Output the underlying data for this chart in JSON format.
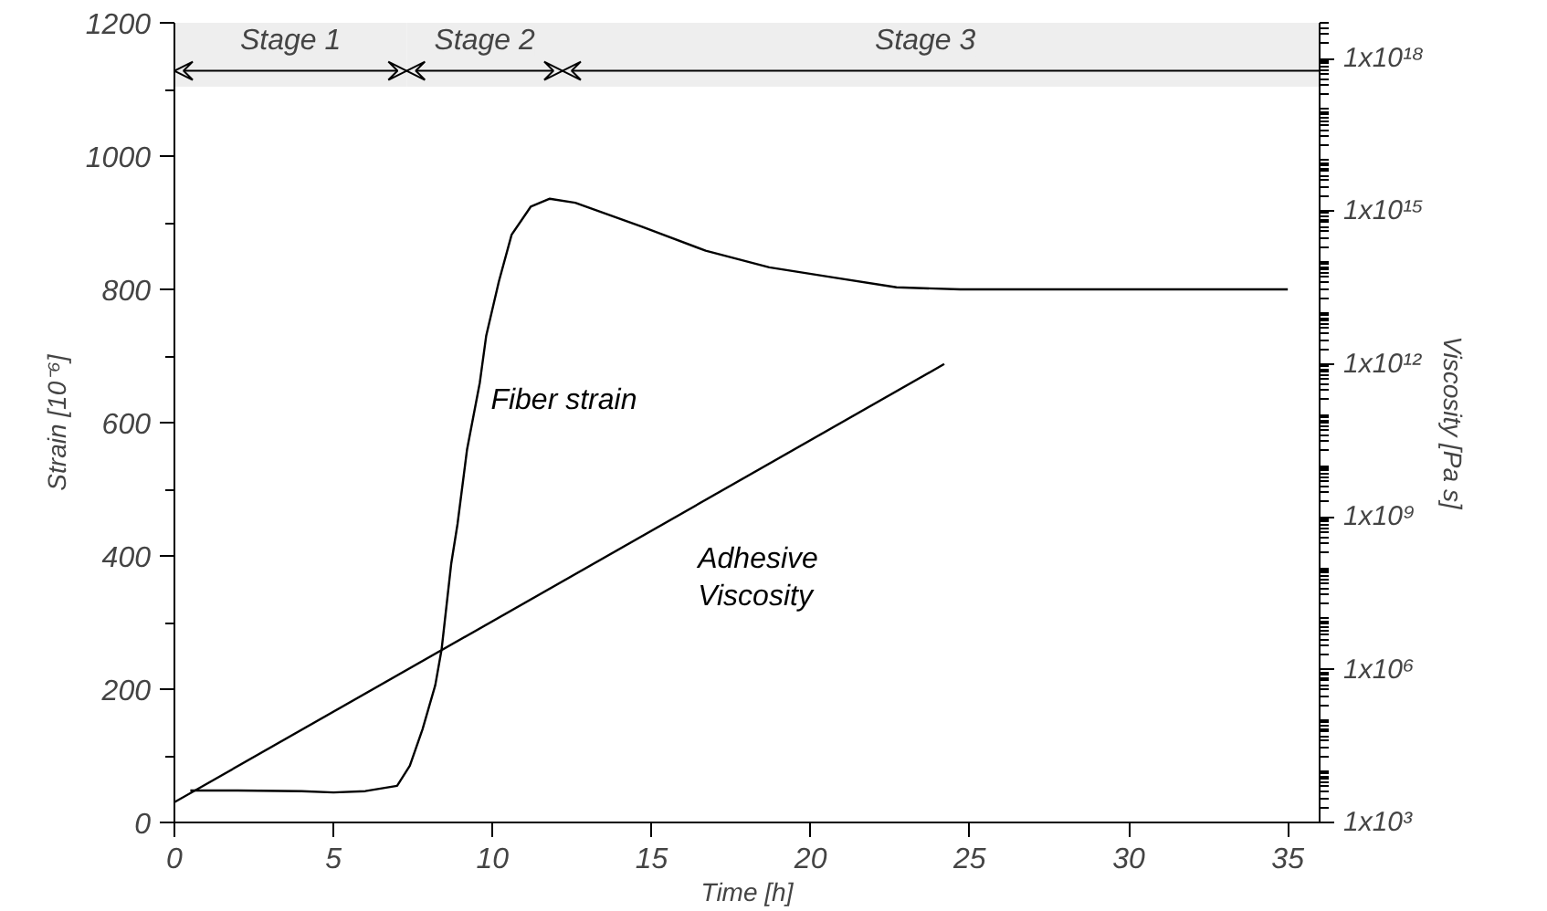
{
  "chart_data": {
    "type": "line",
    "xlabel": "Time [h]",
    "ylabel": "Strain [10⁻⁶]",
    "y2label": "Viscosity [Pa s]",
    "xlim": [
      0,
      36
    ],
    "xticks": [
      0,
      5,
      10,
      15,
      20,
      25,
      30,
      35
    ],
    "ylim": [
      0,
      1200
    ],
    "yticks": [
      0,
      200,
      400,
      600,
      800,
      1000,
      1200
    ],
    "y2lim": [
      1000,
      5e+18
    ],
    "log": "y2",
    "y2ticks": [
      {
        "value": 1000,
        "label": "1x10³"
      },
      {
        "value": 1000000.0,
        "label": "1x10⁶"
      },
      {
        "value": 1000000000.0,
        "label": "1x10⁹"
      },
      {
        "value": 1000000000000.0,
        "label": "1x10¹²"
      },
      {
        "value": 1000000000000000.0,
        "label": "1x10¹⁵"
      },
      {
        "value": 1e+18,
        "label": "1x10¹⁸"
      }
    ],
    "grid": false,
    "marker": "none",
    "line_style": "solid",
    "series": [
      {
        "name": "Fiber strain",
        "color": "#000000",
        "x": [
          0.5,
          2,
          4,
          5,
          6,
          7,
          7.4,
          7.8,
          8.2,
          8.4,
          8.7,
          8.9,
          9.2,
          9.6,
          9.8,
          10.2,
          10.6,
          11.2,
          11.8,
          12.6,
          14.7,
          16.7,
          18.7,
          20.7,
          22.7,
          24.7,
          30,
          35
        ],
        "values": [
          48,
          48,
          47,
          45,
          47,
          55,
          85,
          140,
          206,
          260,
          388,
          448,
          560,
          660,
          730,
          812,
          882,
          924,
          936,
          930,
          894,
          858,
          833,
          818,
          803,
          800,
          800,
          800
        ]
      },
      {
        "name": "Adhesive\nViscosity",
        "color": "#000000",
        "axis": "y2",
        "x": [
          0,
          24.2
        ],
        "values": [
          2500,
          1000000000000.0
        ]
      }
    ],
    "bands": [
      {
        "axis": "x",
        "from": 0,
        "to": 7.3,
        "label": "Stage 1"
      },
      {
        "axis": "x",
        "from": 7.3,
        "to": 12.2,
        "label": "Stage 2"
      },
      {
        "axis": "x",
        "from": 12.2,
        "to": 36,
        "label": "Stage 3"
      }
    ]
  }
}
